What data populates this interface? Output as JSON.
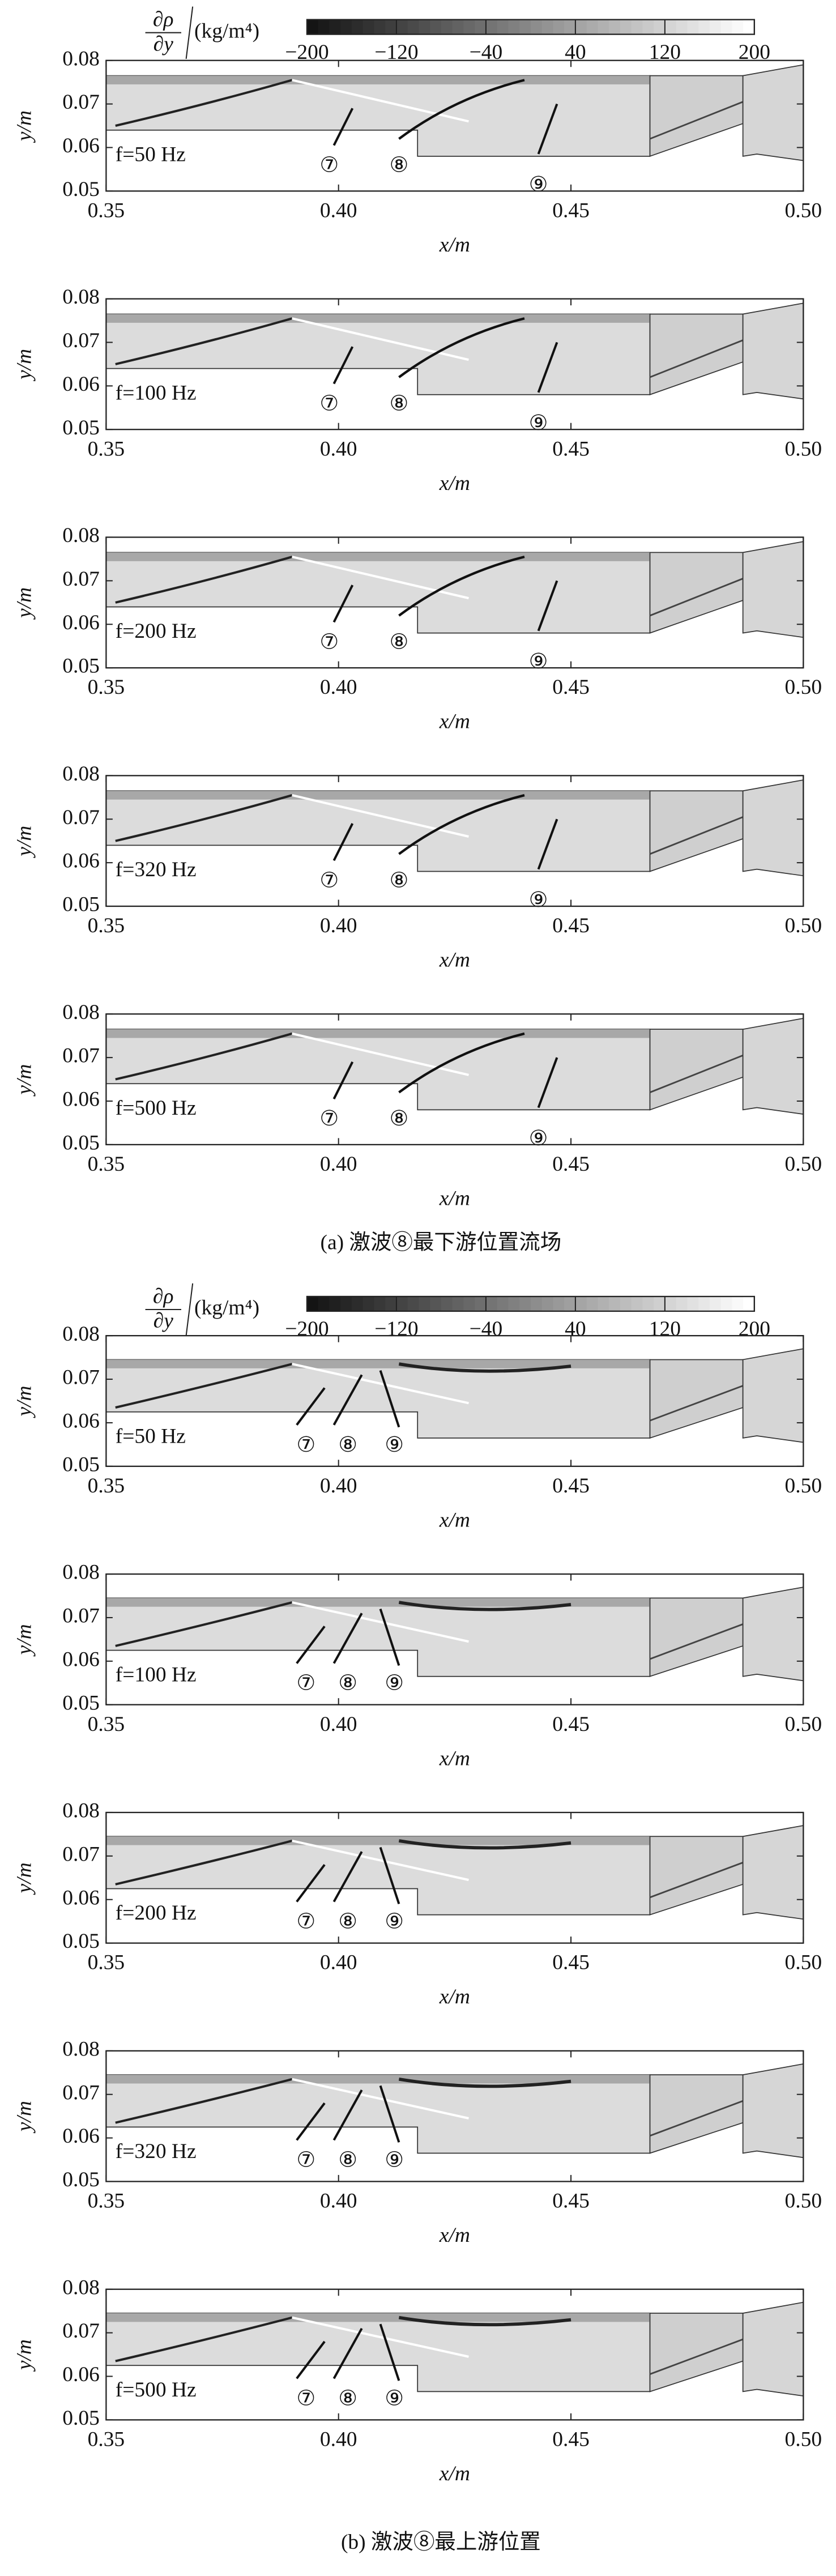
{
  "chart_data": [
    {
      "type": "contour",
      "annotation": "f=50 Hz",
      "shock_labels": [
        "⑦",
        "⑧",
        "⑨"
      ],
      "xlabel": "x/m",
      "ylabel": "y/m",
      "xlim": [
        0.35,
        0.5
      ],
      "ylim": [
        0.05,
        0.08
      ],
      "xticks": [
        0.35,
        {
          "value": 0.4,
          "label": "0.40"
        },
        0.45,
        {
          "value": 0.5,
          "label": "0.50"
        }
      ],
      "yticks": [
        0.05,
        0.06,
        0.07,
        0.08
      ]
    },
    {
      "type": "contour",
      "annotation": "f=100 Hz",
      "shock_labels": [
        "⑦",
        "⑧",
        "⑨"
      ],
      "xlabel": "x/m",
      "ylabel": "y/m",
      "xlim": [
        0.35,
        0.5
      ],
      "ylim": [
        0.05,
        0.08
      ],
      "xticks": [
        0.35,
        {
          "value": 0.4,
          "label": "0.40"
        },
        0.45,
        {
          "value": 0.5,
          "label": "0.50"
        }
      ],
      "yticks": [
        0.05,
        0.06,
        0.07,
        0.08
      ]
    },
    {
      "type": "contour",
      "annotation": "f=200 Hz",
      "shock_labels": [
        "⑦",
        "⑧",
        "⑨"
      ],
      "xlabel": "x/m",
      "ylabel": "y/m",
      "xlim": [
        0.35,
        0.5
      ],
      "ylim": [
        0.05,
        0.08
      ],
      "xticks": [
        0.35,
        {
          "value": 0.4,
          "label": "0.40"
        },
        0.45,
        {
          "value": 0.5,
          "label": "0.50"
        }
      ],
      "yticks": [
        0.05,
        0.06,
        0.07,
        0.08
      ]
    },
    {
      "type": "contour",
      "annotation": "f=320 Hz",
      "shock_labels": [
        "⑦",
        "⑧",
        "⑨"
      ],
      "xlabel": "x/m",
      "ylabel": "y/m",
      "xlim": [
        0.35,
        0.5
      ],
      "ylim": [
        0.05,
        0.08
      ],
      "xticks": [
        0.35,
        {
          "value": 0.4,
          "label": "0.40"
        },
        0.45,
        {
          "value": 0.5,
          "label": "0.50"
        }
      ],
      "yticks": [
        0.05,
        0.06,
        0.07,
        0.08
      ]
    },
    {
      "type": "contour",
      "annotation": "f=500 Hz",
      "shock_labels": [
        "⑦",
        "⑧",
        "⑨"
      ],
      "xlabel": "x/m",
      "ylabel": "y/m",
      "xlim": [
        0.35,
        0.5
      ],
      "ylim": [
        0.05,
        0.08
      ],
      "xticks": [
        0.35,
        {
          "value": 0.4,
          "label": "0.40"
        },
        0.45,
        {
          "value": 0.5,
          "label": "0.50"
        }
      ],
      "yticks": [
        0.05,
        0.06,
        0.07,
        0.08
      ]
    },
    {
      "type": "contour",
      "annotation": "f=50 Hz",
      "shock_labels": [
        "⑦",
        "⑧",
        "⑨"
      ],
      "xlabel": "x/m",
      "ylabel": "y/m",
      "xlim": [
        0.35,
        0.5
      ],
      "ylim": [
        0.05,
        0.08
      ],
      "xticks": [
        0.35,
        {
          "value": 0.4,
          "label": "0.40"
        },
        0.45,
        {
          "value": 0.5,
          "label": "0.50"
        }
      ],
      "yticks": [
        0.05,
        0.06,
        0.07,
        0.08
      ]
    },
    {
      "type": "contour",
      "annotation": "f=100 Hz",
      "shock_labels": [
        "⑦",
        "⑧",
        "⑨"
      ],
      "xlabel": "x/m",
      "ylabel": "y/m",
      "xlim": [
        0.35,
        0.5
      ],
      "ylim": [
        0.05,
        0.08
      ],
      "xticks": [
        0.35,
        {
          "value": 0.4,
          "label": "0.40"
        },
        0.45,
        {
          "value": 0.5,
          "label": "0.50"
        }
      ],
      "yticks": [
        0.05,
        0.06,
        0.07,
        0.08
      ]
    },
    {
      "type": "contour",
      "annotation": "f=200 Hz",
      "shock_labels": [
        "⑦",
        "⑧",
        "⑨"
      ],
      "xlabel": "x/m",
      "ylabel": "y/m",
      "xlim": [
        0.35,
        0.5
      ],
      "ylim": [
        0.05,
        0.08
      ],
      "xticks": [
        0.35,
        {
          "value": 0.4,
          "label": "0.40"
        },
        0.45,
        {
          "value": 0.5,
          "label": "0.50"
        }
      ],
      "yticks": [
        0.05,
        0.06,
        0.07,
        0.08
      ]
    },
    {
      "type": "contour",
      "annotation": "f=320 Hz",
      "shock_labels": [
        "⑦",
        "⑧",
        "⑨"
      ],
      "xlabel": "x/m",
      "ylabel": "y/m",
      "xlim": [
        0.35,
        0.5
      ],
      "ylim": [
        0.05,
        0.08
      ],
      "xticks": [
        0.35,
        {
          "value": 0.4,
          "label": "0.40"
        },
        0.45,
        {
          "value": 0.5,
          "label": "0.50"
        }
      ],
      "yticks": [
        0.05,
        0.06,
        0.07,
        0.08
      ]
    },
    {
      "type": "contour",
      "annotation": "f=500 Hz",
      "shock_labels": [
        "⑦",
        "⑧",
        "⑨"
      ],
      "xlabel": "x/m",
      "ylabel": "y/m",
      "xlim": [
        0.35,
        0.5
      ],
      "ylim": [
        0.05,
        0.08
      ],
      "xticks": [
        0.35,
        {
          "value": 0.4,
          "label": "0.40"
        },
        0.45,
        {
          "value": 0.5,
          "label": "0.50"
        }
      ],
      "yticks": [
        0.05,
        0.06,
        0.07,
        0.08
      ]
    }
  ],
  "colorbars": [
    {
      "label_num": "∂ρ",
      "label_den": "∂y",
      "unit": "(kg/m⁴)",
      "lim": [
        -200,
        200
      ],
      "ticks": [
        {
          "value": -200,
          "label": "−200"
        },
        {
          "value": -120,
          "label": "−120"
        },
        {
          "value": -40,
          "label": "−40"
        },
        40,
        120,
        200
      ]
    },
    {
      "label_num": "∂ρ",
      "label_den": "∂y",
      "unit": "(kg/m⁴)",
      "lim": [
        -200,
        200
      ],
      "ticks": [
        {
          "value": -200,
          "label": "−200"
        },
        {
          "value": -120,
          "label": "−120"
        },
        {
          "value": -40,
          "label": "−40"
        },
        40,
        120,
        200
      ]
    }
  ],
  "captions": [
    "(a) 激波⑧最下游位置流场",
    "(b) 激波⑧最上游位置"
  ]
}
